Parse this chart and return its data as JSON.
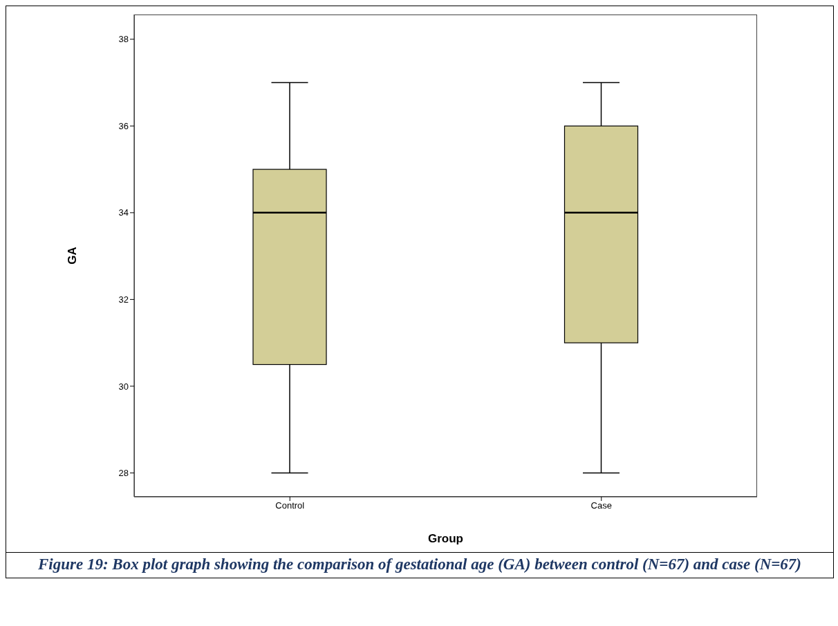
{
  "chart_data": {
    "type": "box",
    "xlabel": "Group",
    "ylabel": "GA",
    "categories": [
      "Control",
      "Case"
    ],
    "boxes": [
      {
        "low": 28,
        "q1": 30.5,
        "median": 34,
        "q3": 35,
        "high": 37
      },
      {
        "low": 28,
        "q1": 31,
        "median": 34,
        "q3": 36,
        "high": 37
      }
    ],
    "color": "#d3ce97",
    "ylim": [
      27.45,
      38.57
    ],
    "yticks": [
      28,
      30,
      32,
      34,
      36,
      38
    ],
    "annotations": [
      "Figure 19: Box plot graph showing the comparison of gestational age (GA) between control (N=67) and case (N=67)"
    ]
  }
}
